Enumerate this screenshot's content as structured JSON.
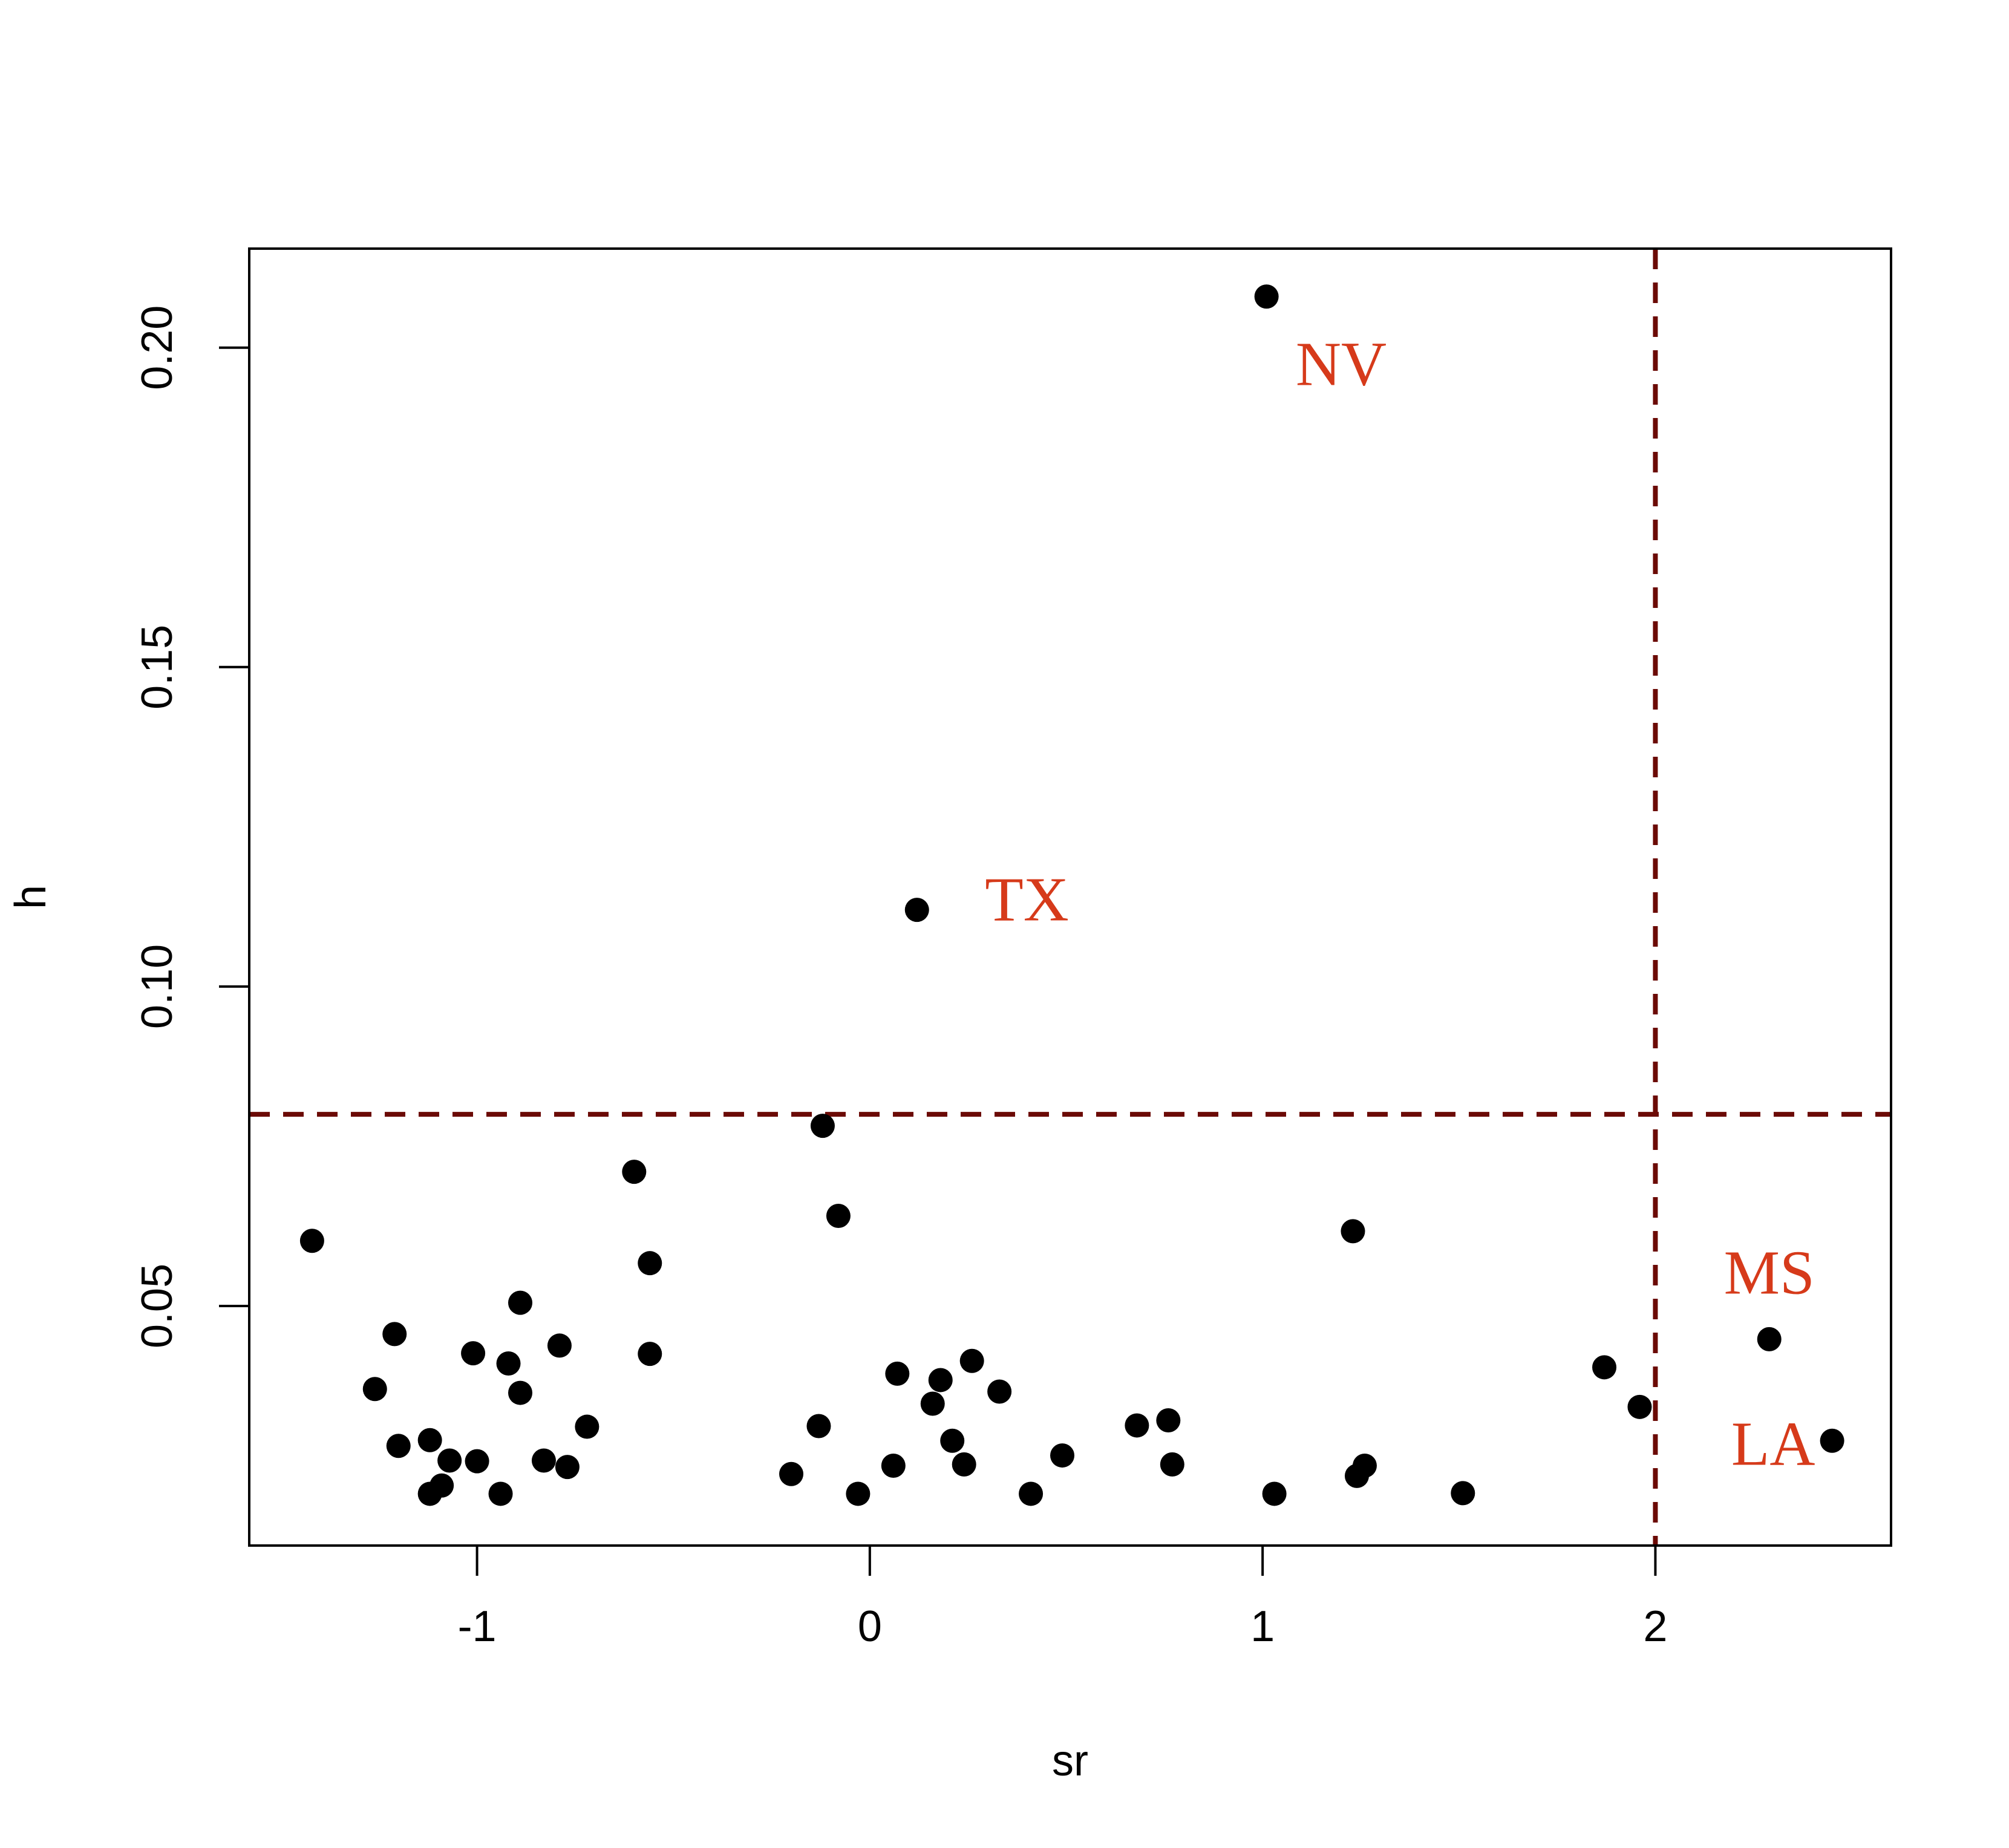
{
  "chart_data": {
    "type": "scatter",
    "title": "",
    "xlabel": "sr",
    "ylabel": "h",
    "xlim": [
      -1.58,
      2.6
    ],
    "ylim": [
      0.0125,
      0.2155
    ],
    "x_ticks": [
      -1,
      0,
      1,
      2
    ],
    "x_tick_labels": [
      "-1",
      "0",
      "1",
      "2"
    ],
    "y_ticks": [
      0.05,
      0.1,
      0.15,
      0.2
    ],
    "y_tick_labels": [
      "0.05",
      "0.10",
      "0.15",
      "0.20"
    ],
    "grid": false,
    "point_color": "#000000",
    "reference_lines": [
      {
        "orientation": "horizontal",
        "value": 0.08,
        "style": "dashed",
        "color": "#6b0a05"
      },
      {
        "orientation": "vertical",
        "value": 2.0,
        "style": "dashed",
        "color": "#6b0a05"
      }
    ],
    "annotation_color": "#d63a1a",
    "annotations": [
      {
        "text": "NV",
        "x": 1.2,
        "y": 0.1964
      },
      {
        "text": "TX",
        "x": 0.4,
        "y": 0.1126
      },
      {
        "text": "MS",
        "x": 2.29,
        "y": 0.0542
      },
      {
        "text": "LA",
        "x": 2.3,
        "y": 0.0274
      }
    ],
    "points": [
      {
        "x": -1.42,
        "y": 0.0602
      },
      {
        "x": -1.26,
        "y": 0.037
      },
      {
        "x": -1.21,
        "y": 0.0456
      },
      {
        "x": -1.2,
        "y": 0.0281
      },
      {
        "x": -1.12,
        "y": 0.029
      },
      {
        "x": -1.12,
        "y": 0.0206
      },
      {
        "x": -1.09,
        "y": 0.0219
      },
      {
        "x": -1.07,
        "y": 0.0258
      },
      {
        "x": -1.01,
        "y": 0.0426
      },
      {
        "x": -1.0,
        "y": 0.0257
      },
      {
        "x": -0.94,
        "y": 0.0206
      },
      {
        "x": -0.92,
        "y": 0.041
      },
      {
        "x": -0.89,
        "y": 0.0505
      },
      {
        "x": -0.89,
        "y": 0.0364
      },
      {
        "x": -0.83,
        "y": 0.0258
      },
      {
        "x": -0.79,
        "y": 0.0438
      },
      {
        "x": -0.77,
        "y": 0.0248
      },
      {
        "x": -0.72,
        "y": 0.0311
      },
      {
        "x": -0.6,
        "y": 0.071
      },
      {
        "x": -0.56,
        "y": 0.0567
      },
      {
        "x": -0.56,
        "y": 0.0425
      },
      {
        "x": -0.2,
        "y": 0.0237
      },
      {
        "x": -0.13,
        "y": 0.0312
      },
      {
        "x": -0.12,
        "y": 0.0782
      },
      {
        "x": -0.08,
        "y": 0.0641
      },
      {
        "x": -0.03,
        "y": 0.0206
      },
      {
        "x": 0.06,
        "y": 0.025
      },
      {
        "x": 0.07,
        "y": 0.0394
      },
      {
        "x": 0.12,
        "y": 0.112
      },
      {
        "x": 0.16,
        "y": 0.0347
      },
      {
        "x": 0.18,
        "y": 0.0384
      },
      {
        "x": 0.21,
        "y": 0.0289
      },
      {
        "x": 0.24,
        "y": 0.0252
      },
      {
        "x": 0.26,
        "y": 0.0414
      },
      {
        "x": 0.33,
        "y": 0.0366
      },
      {
        "x": 0.41,
        "y": 0.0206
      },
      {
        "x": 0.49,
        "y": 0.0266
      },
      {
        "x": 0.68,
        "y": 0.0313
      },
      {
        "x": 0.76,
        "y": 0.0321
      },
      {
        "x": 0.77,
        "y": 0.0252
      },
      {
        "x": 1.01,
        "y": 0.208
      },
      {
        "x": 1.03,
        "y": 0.0206
      },
      {
        "x": 1.23,
        "y": 0.0617
      },
      {
        "x": 1.24,
        "y": 0.0234
      },
      {
        "x": 1.26,
        "y": 0.025
      },
      {
        "x": 1.51,
        "y": 0.0207
      },
      {
        "x": 1.87,
        "y": 0.0404
      },
      {
        "x": 1.96,
        "y": 0.0342
      },
      {
        "x": 2.29,
        "y": 0.0448
      },
      {
        "x": 2.45,
        "y": 0.0289
      }
    ]
  }
}
